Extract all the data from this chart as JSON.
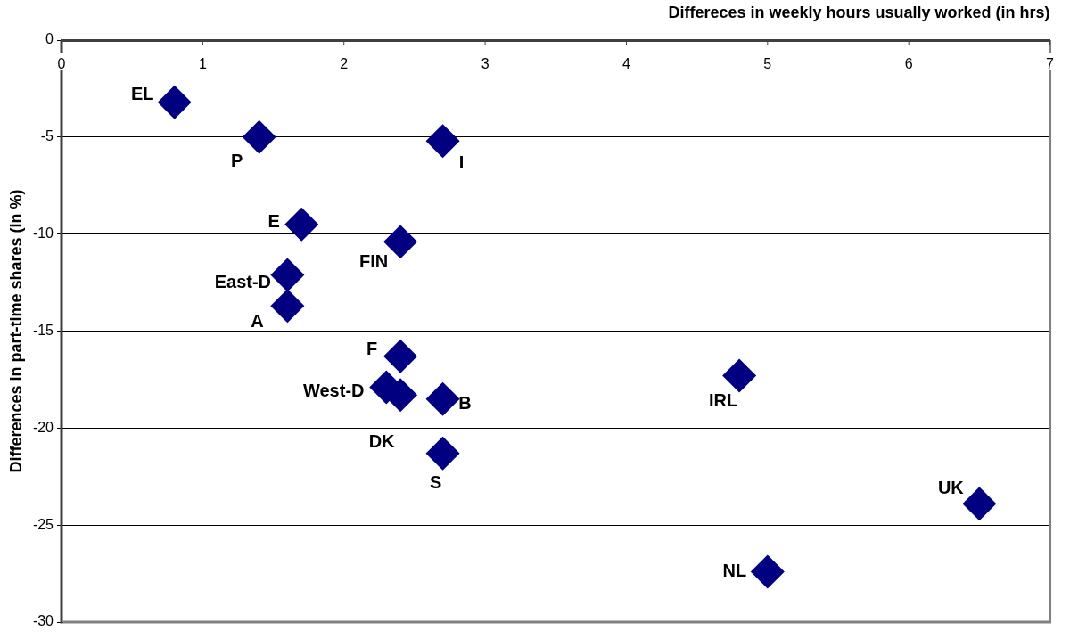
{
  "chart_data": {
    "type": "scatter",
    "xlabel": "Differeces in weekly hours usually worked (in hrs)",
    "ylabel": "Differences in part-time shares (in %)",
    "xlim": [
      0,
      7
    ],
    "xticks": [
      0,
      1,
      2,
      3,
      4,
      5,
      6,
      7
    ],
    "ylim": [
      -30,
      0
    ],
    "yticks": [
      -30,
      -25,
      -20,
      -15,
      -10,
      -5,
      0
    ],
    "grid": "y",
    "marker": "diamond",
    "series": [
      {
        "name": "EL",
        "color": "#000080",
        "x": [
          0.8
        ],
        "values": [
          -3.2
        ]
      },
      {
        "name": "P",
        "color": "#000080",
        "x": [
          1.4
        ],
        "values": [
          -5.0
        ]
      },
      {
        "name": "I",
        "color": "#000080",
        "x": [
          2.7
        ],
        "values": [
          -5.2
        ]
      },
      {
        "name": "E",
        "color": "#000080",
        "x": [
          1.7
        ],
        "values": [
          -9.5
        ]
      },
      {
        "name": "FIN",
        "color": "#000080",
        "x": [
          2.4
        ],
        "values": [
          -10.4
        ]
      },
      {
        "name": "East-D",
        "color": "#000080",
        "x": [
          1.6
        ],
        "values": [
          -12.1
        ]
      },
      {
        "name": "A",
        "color": "#000080",
        "x": [
          1.6
        ],
        "values": [
          -13.7
        ]
      },
      {
        "name": "F",
        "color": "#000080",
        "x": [
          2.4
        ],
        "values": [
          -16.3
        ]
      },
      {
        "name": "West-D",
        "color": "#000080",
        "x": [
          2.3
        ],
        "values": [
          -17.9
        ]
      },
      {
        "name": "DK",
        "color": "#000080",
        "x": [
          2.4
        ],
        "values": [
          -18.3
        ]
      },
      {
        "name": "B",
        "color": "#000080",
        "x": [
          2.7
        ],
        "values": [
          -18.5
        ]
      },
      {
        "name": "S",
        "color": "#000080",
        "x": [
          2.7
        ],
        "values": [
          -21.3
        ]
      },
      {
        "name": "IRL",
        "color": "#000080",
        "x": [
          4.8
        ],
        "values": [
          -17.3
        ]
      },
      {
        "name": "UK",
        "color": "#000080",
        "x": [
          6.5
        ],
        "values": [
          -23.9
        ]
      },
      {
        "name": "NL",
        "color": "#000080",
        "x": [
          5.0
        ],
        "values": [
          -27.4
        ]
      }
    ]
  }
}
